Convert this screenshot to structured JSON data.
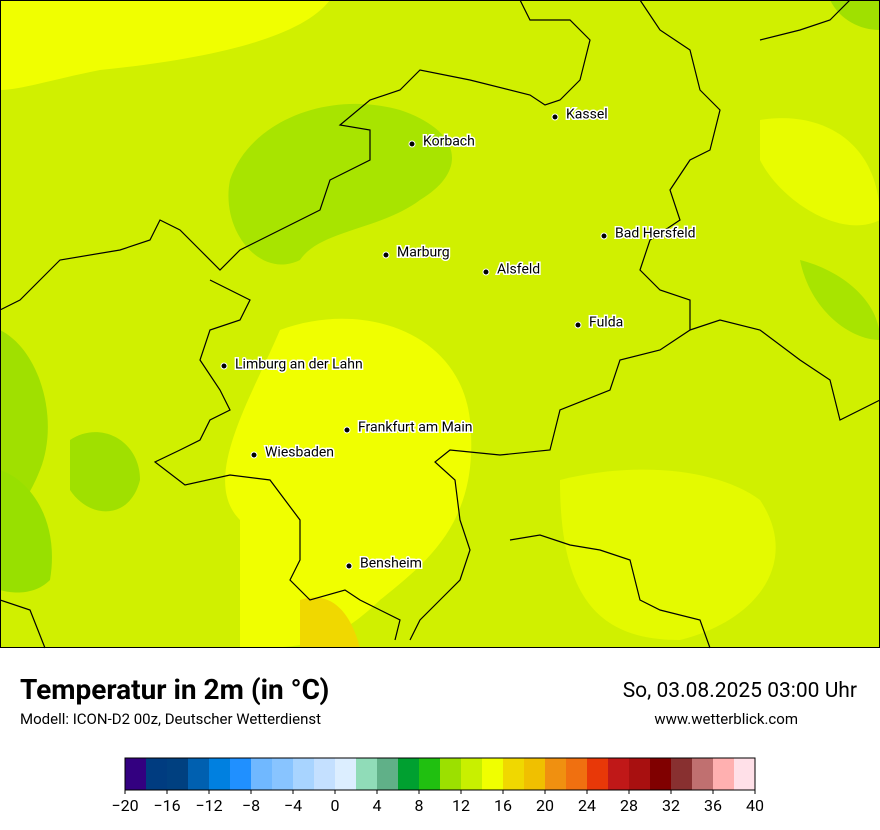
{
  "map": {
    "cities": [
      "Kassel",
      "Korbach",
      "Bad Hersfeld",
      "Marburg",
      "Alsfeld",
      "Fulda",
      "Limburg an der Lahn",
      "Frankfurt am Main",
      "Wiesbaden",
      "Bensheim"
    ]
  },
  "footer": {
    "title": "Temperatur in 2m (in °C)",
    "subtitle": "Modell: ICON-D2 00z, Deutscher Wetterdienst",
    "date": "So, 03.08.2025 03:00 Uhr",
    "website": "www.wetterblick.com"
  },
  "colorbar": {
    "lim": [
      -20,
      40
    ],
    "colors": [
      "#330080",
      "#003c80",
      "#004080",
      "#0060b0",
      "#0080e0",
      "#2090ff",
      "#70b8ff",
      "#88c4ff",
      "#a8d4ff",
      "#c4e0ff",
      "#dceeff",
      "#90dcb8",
      "#60b088",
      "#00a030",
      "#20c010",
      "#9ce000",
      "#c8f000",
      "#f0ff00",
      "#f0d800",
      "#f0c000",
      "#f09010",
      "#f07010",
      "#e83808",
      "#c01818",
      "#a81010",
      "#800000",
      "#883030",
      "#c07070",
      "#ffb0b0",
      "#ffe0e8"
    ],
    "ticks": [
      {
        "value": -20,
        "label": "−20"
      },
      {
        "value": -16,
        "label": "−16"
      },
      {
        "value": -12,
        "label": "−12"
      },
      {
        "value": -8,
        "label": "−8"
      },
      {
        "value": -4,
        "label": "−4"
      },
      0,
      4,
      8,
      12,
      16,
      20,
      24,
      28,
      32,
      36,
      40
    ]
  }
}
